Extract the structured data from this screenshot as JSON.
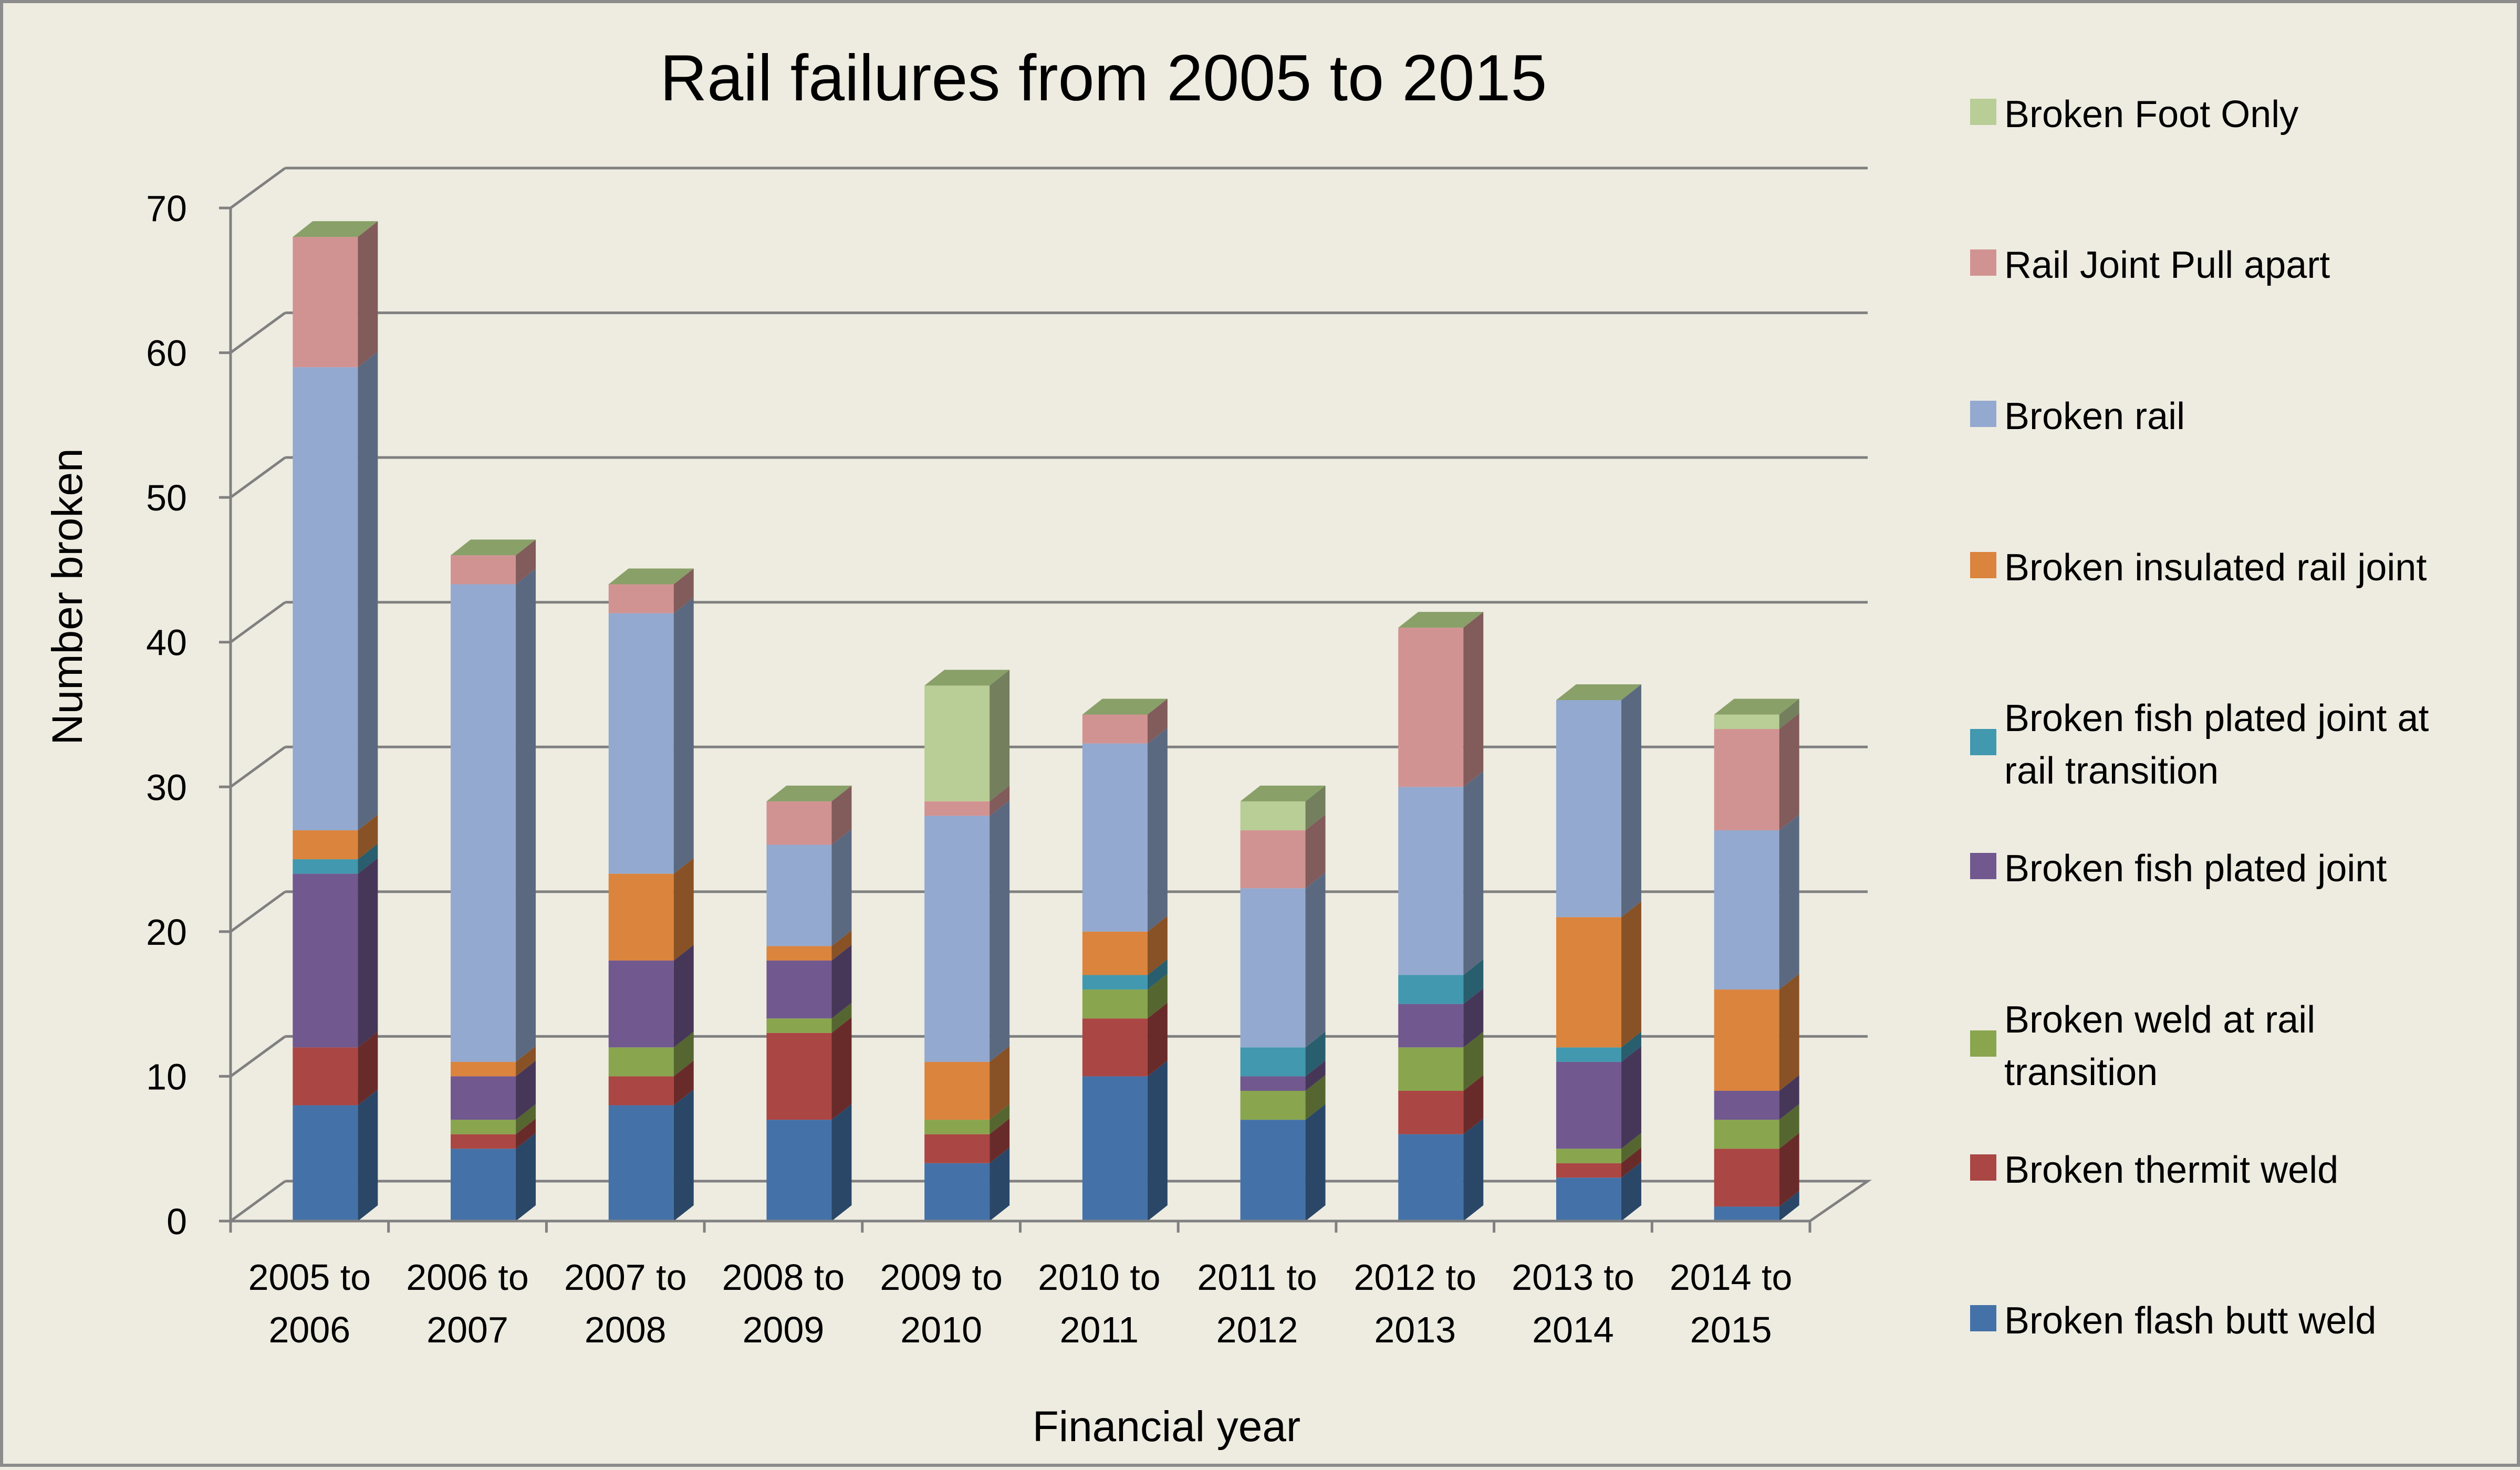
{
  "chart_data": {
    "type": "bar",
    "stacked": true,
    "style": "3d",
    "title": "Rail failures from 2005 to 2015",
    "xlabel": "Financial year",
    "ylabel": "Number broken",
    "ylim": [
      0,
      70
    ],
    "yticks": [
      0,
      10,
      20,
      30,
      40,
      50,
      60,
      70
    ],
    "grid": true,
    "legend_position": "right",
    "categories": [
      [
        "2005 to",
        "2006"
      ],
      [
        "2006 to",
        "2007"
      ],
      [
        "2007 to",
        "2008"
      ],
      [
        "2008 to",
        "2009"
      ],
      [
        "2009 to",
        "2010"
      ],
      [
        "2010 to",
        "2011"
      ],
      [
        "2011 to",
        "2012"
      ],
      [
        "2012 to",
        "2013"
      ],
      [
        "2013 to",
        "2014"
      ],
      [
        "2014 to",
        "2015"
      ]
    ],
    "series": [
      {
        "name": "Broken flash butt weld",
        "color": "#4472a8",
        "values": [
          8,
          5,
          8,
          7,
          4,
          10,
          7,
          6,
          3,
          1
        ]
      },
      {
        "name": "Broken thermit weld",
        "color": "#aa4643",
        "values": [
          4,
          1,
          2,
          6,
          2,
          4,
          0,
          3,
          1,
          4
        ]
      },
      {
        "name": "Broken weld at rail transition",
        "color": "#89a54e",
        "values": [
          0,
          1,
          2,
          1,
          1,
          2,
          2,
          3,
          1,
          2
        ]
      },
      {
        "name": "Broken fish plated joint",
        "color": "#71588f",
        "values": [
          12,
          3,
          6,
          4,
          0,
          0,
          1,
          3,
          6,
          2
        ]
      },
      {
        "name": "Broken fish plated joint at rail transition",
        "color": "#4198af",
        "values": [
          1,
          0,
          0,
          0,
          0,
          1,
          2,
          2,
          1,
          0
        ]
      },
      {
        "name": "Broken insulated rail joint",
        "color": "#db843d",
        "values": [
          2,
          1,
          6,
          1,
          4,
          3,
          0,
          0,
          9,
          7
        ]
      },
      {
        "name": "Broken rail",
        "color": "#93a9cf",
        "values": [
          32,
          33,
          18,
          7,
          17,
          13,
          11,
          13,
          15,
          11
        ]
      },
      {
        "name": "Rail Joint Pull apart",
        "color": "#d19392",
        "values": [
          9,
          2,
          2,
          3,
          1,
          2,
          4,
          11,
          0,
          7
        ]
      },
      {
        "name": "Broken Foot Only",
        "color": "#b9cd96",
        "values": [
          0,
          0,
          0,
          0,
          8,
          0,
          2,
          0,
          0,
          1
        ]
      }
    ],
    "legend": [
      {
        "lines": [
          "Broken Foot Only"
        ],
        "color": "#b9cd96"
      },
      {
        "lines": [
          "Rail Joint Pull apart"
        ],
        "color": "#d19392"
      },
      {
        "lines": [
          "Broken rail"
        ],
        "color": "#93a9cf"
      },
      {
        "lines": [
          "Broken insulated rail joint"
        ],
        "color": "#db843d"
      },
      {
        "lines": [
          "Broken fish plated joint at",
          "rail transition"
        ],
        "color": "#4198af"
      },
      {
        "lines": [
          "Broken fish plated joint"
        ],
        "color": "#71588f"
      },
      {
        "lines": [
          "Broken weld at rail",
          "transition"
        ],
        "color": "#89a54e"
      },
      {
        "lines": [
          "Broken thermit weld"
        ],
        "color": "#aa4643"
      },
      {
        "lines": [
          "Broken flash butt weld"
        ],
        "color": "#4472a8"
      }
    ]
  }
}
